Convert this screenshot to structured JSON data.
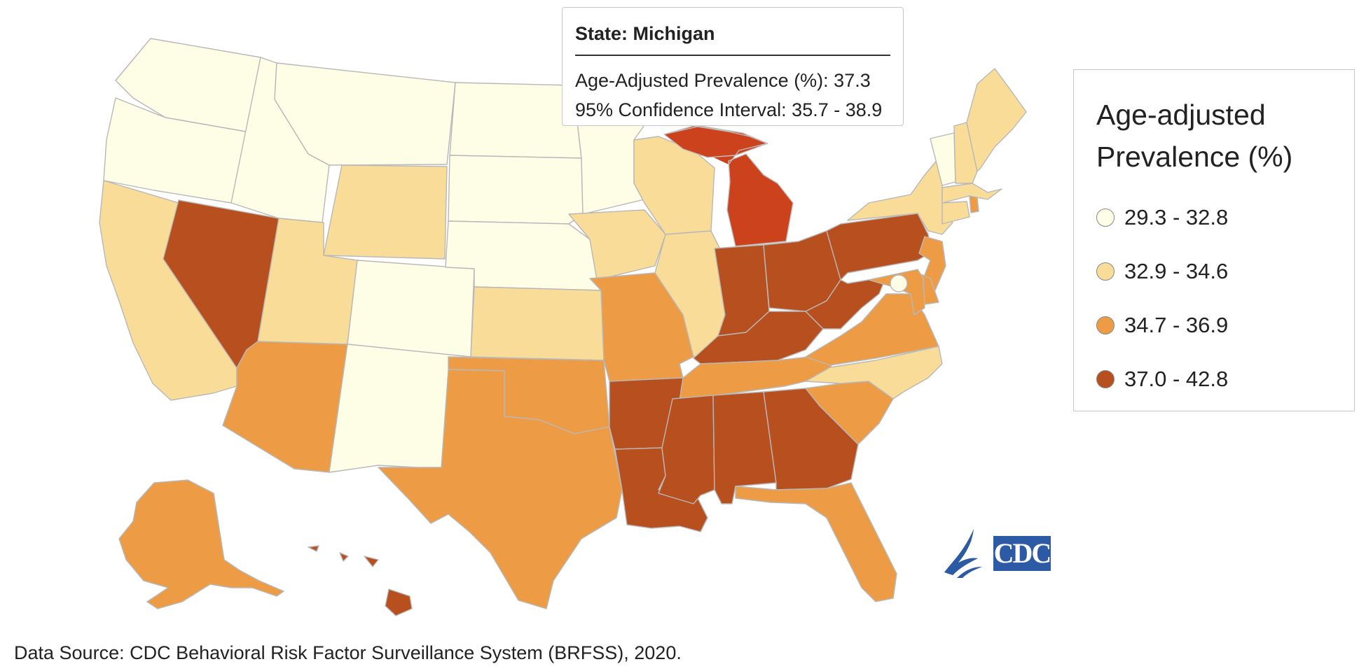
{
  "tooltip": {
    "title": "State: Michigan",
    "prevalence_line": "Age-Adjusted Prevalence (%): 37.3",
    "ci_line": "95% Confidence Interval: 35.7 - 38.9"
  },
  "legend": {
    "title_line1": "Age-adjusted",
    "title_line2": "Prevalence (%)",
    "classes": [
      {
        "label": "29.3 - 32.8",
        "color": "#fefde6"
      },
      {
        "label": "32.9 - 34.6",
        "color": "#f9dc98"
      },
      {
        "label": "34.7 - 36.9",
        "color": "#ed9c45"
      },
      {
        "label": "37.0 - 42.8",
        "color": "#b84f1e"
      }
    ]
  },
  "colors": {
    "c1": "#fefde6",
    "c2": "#f9dc98",
    "c3": "#ed9c45",
    "c4": "#b84f1e",
    "highlight": "#cc421d",
    "logo": "#2d5aa5"
  },
  "state_classes": {
    "WA": 1,
    "OR": 1,
    "ID": 1,
    "MT": 1,
    "ND": 1,
    "SD": 1,
    "NE": 1,
    "CO": 1,
    "NM": 1,
    "MN": 1,
    "VT": 1,
    "DC": 1,
    "CA": 2,
    "UT": 2,
    "WY": 2,
    "KS": 2,
    "IA": 2,
    "WI": 2,
    "IL": 2,
    "NY": 2,
    "NC": 2,
    "ME": 2,
    "NH": 2,
    "MA": 2,
    "CT": 2,
    "AZ": 3,
    "TX": 3,
    "OK": 3,
    "MO": 3,
    "FL": 3,
    "SC": 3,
    "TN": 3,
    "VA": 3,
    "NJ": 3,
    "DE": 3,
    "MD": 3,
    "RI": 3,
    "AK": 3,
    "NV": 4,
    "IN": 4,
    "OH": 4,
    "KY": 4,
    "WV": 4,
    "PA": 4,
    "AR": 4,
    "LA": 4,
    "MS": 4,
    "AL": 4,
    "GA": 4,
    "HI": 4,
    "MI": 4
  },
  "hovered_state": "MI",
  "source": "Data Source: CDC Behavioral Risk Factor Surveillance System (BRFSS), 2020.",
  "logo_text": "CDC"
}
